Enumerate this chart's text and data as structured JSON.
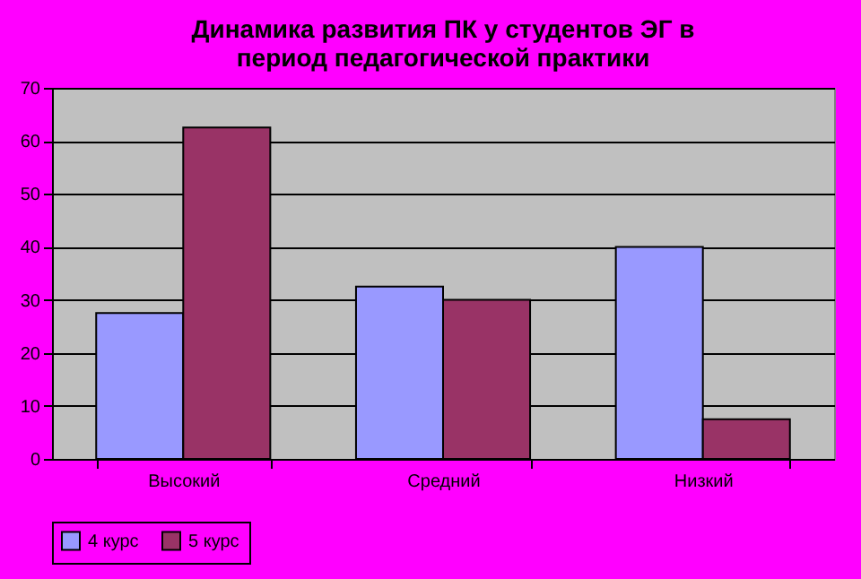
{
  "chart_data": {
    "type": "bar",
    "title": "Динамика развития ПК у студентов ЭГ в период педагогической практики",
    "categories": [
      "Высокий",
      "Средний",
      "Низкий"
    ],
    "series": [
      {
        "name": "4 курс",
        "color": "#9999ff",
        "values": [
          27.5,
          32.5,
          40
        ]
      },
      {
        "name": "5 курс",
        "color": "#993366",
        "values": [
          62.5,
          30,
          7.5
        ]
      }
    ],
    "ylim": [
      0,
      70
    ],
    "yticks": [
      0,
      10,
      20,
      30,
      40,
      50,
      60,
      70
    ],
    "grid": "y",
    "legend": "bottom"
  }
}
